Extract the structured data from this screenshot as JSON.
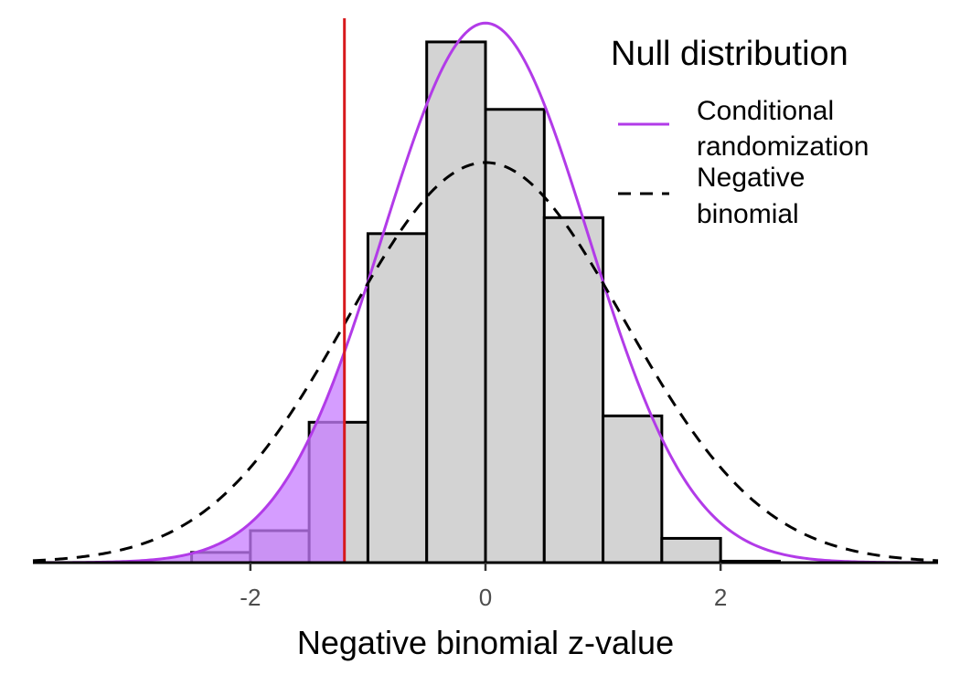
{
  "chart_data": {
    "type": "histogram",
    "title": "",
    "xlabel": "Negative binomial z-value",
    "ylabel": "",
    "xlim": [
      -3.85,
      3.85
    ],
    "ylim": [
      0,
      0.46
    ],
    "xticks": [
      -2,
      0,
      2
    ],
    "xtick_labels": [
      "-2",
      "0",
      "2"
    ],
    "y_axis_shown": false,
    "grid": false,
    "bins": [
      {
        "x0": -2.5,
        "x1": -2.0,
        "density": 0.0086
      },
      {
        "x0": -2.0,
        "x1": -1.5,
        "density": 0.027
      },
      {
        "x0": -1.5,
        "x1": -1.0,
        "density": 0.1186
      },
      {
        "x0": -1.0,
        "x1": -0.5,
        "density": 0.278
      },
      {
        "x0": -0.5,
        "x1": 0.0,
        "density": 0.44
      },
      {
        "x0": 0.0,
        "x1": 0.5,
        "density": 0.383
      },
      {
        "x0": 0.5,
        "x1": 1.0,
        "density": 0.2915
      },
      {
        "x0": 1.0,
        "x1": 1.5,
        "density": 0.124
      },
      {
        "x0": 1.5,
        "x1": 2.0,
        "density": 0.0205
      },
      {
        "x0": 2.0,
        "x1": 2.5,
        "density": 0.0012
      }
    ],
    "bar_fill": "#d3d3d3",
    "bar_stroke": "#000000",
    "observed_value": -1.2,
    "observed_line_color": "#d7191c",
    "tail_fill_color": "#c77cff",
    "series": [
      {
        "name": "Conditional randomization",
        "mean": 0.0,
        "sd": 0.875,
        "style": "solid",
        "color": "#b23be8"
      },
      {
        "name": "Negative binomial",
        "mean": 0.0,
        "sd": 1.18,
        "style": "dashed",
        "color": "#000000"
      }
    ],
    "legend": {
      "title": "Null distribution",
      "position": "top-right",
      "entries": [
        {
          "lines": [
            "Conditional",
            "randomization"
          ]
        },
        {
          "lines": [
            "Negative",
            "binomial"
          ]
        }
      ]
    }
  }
}
